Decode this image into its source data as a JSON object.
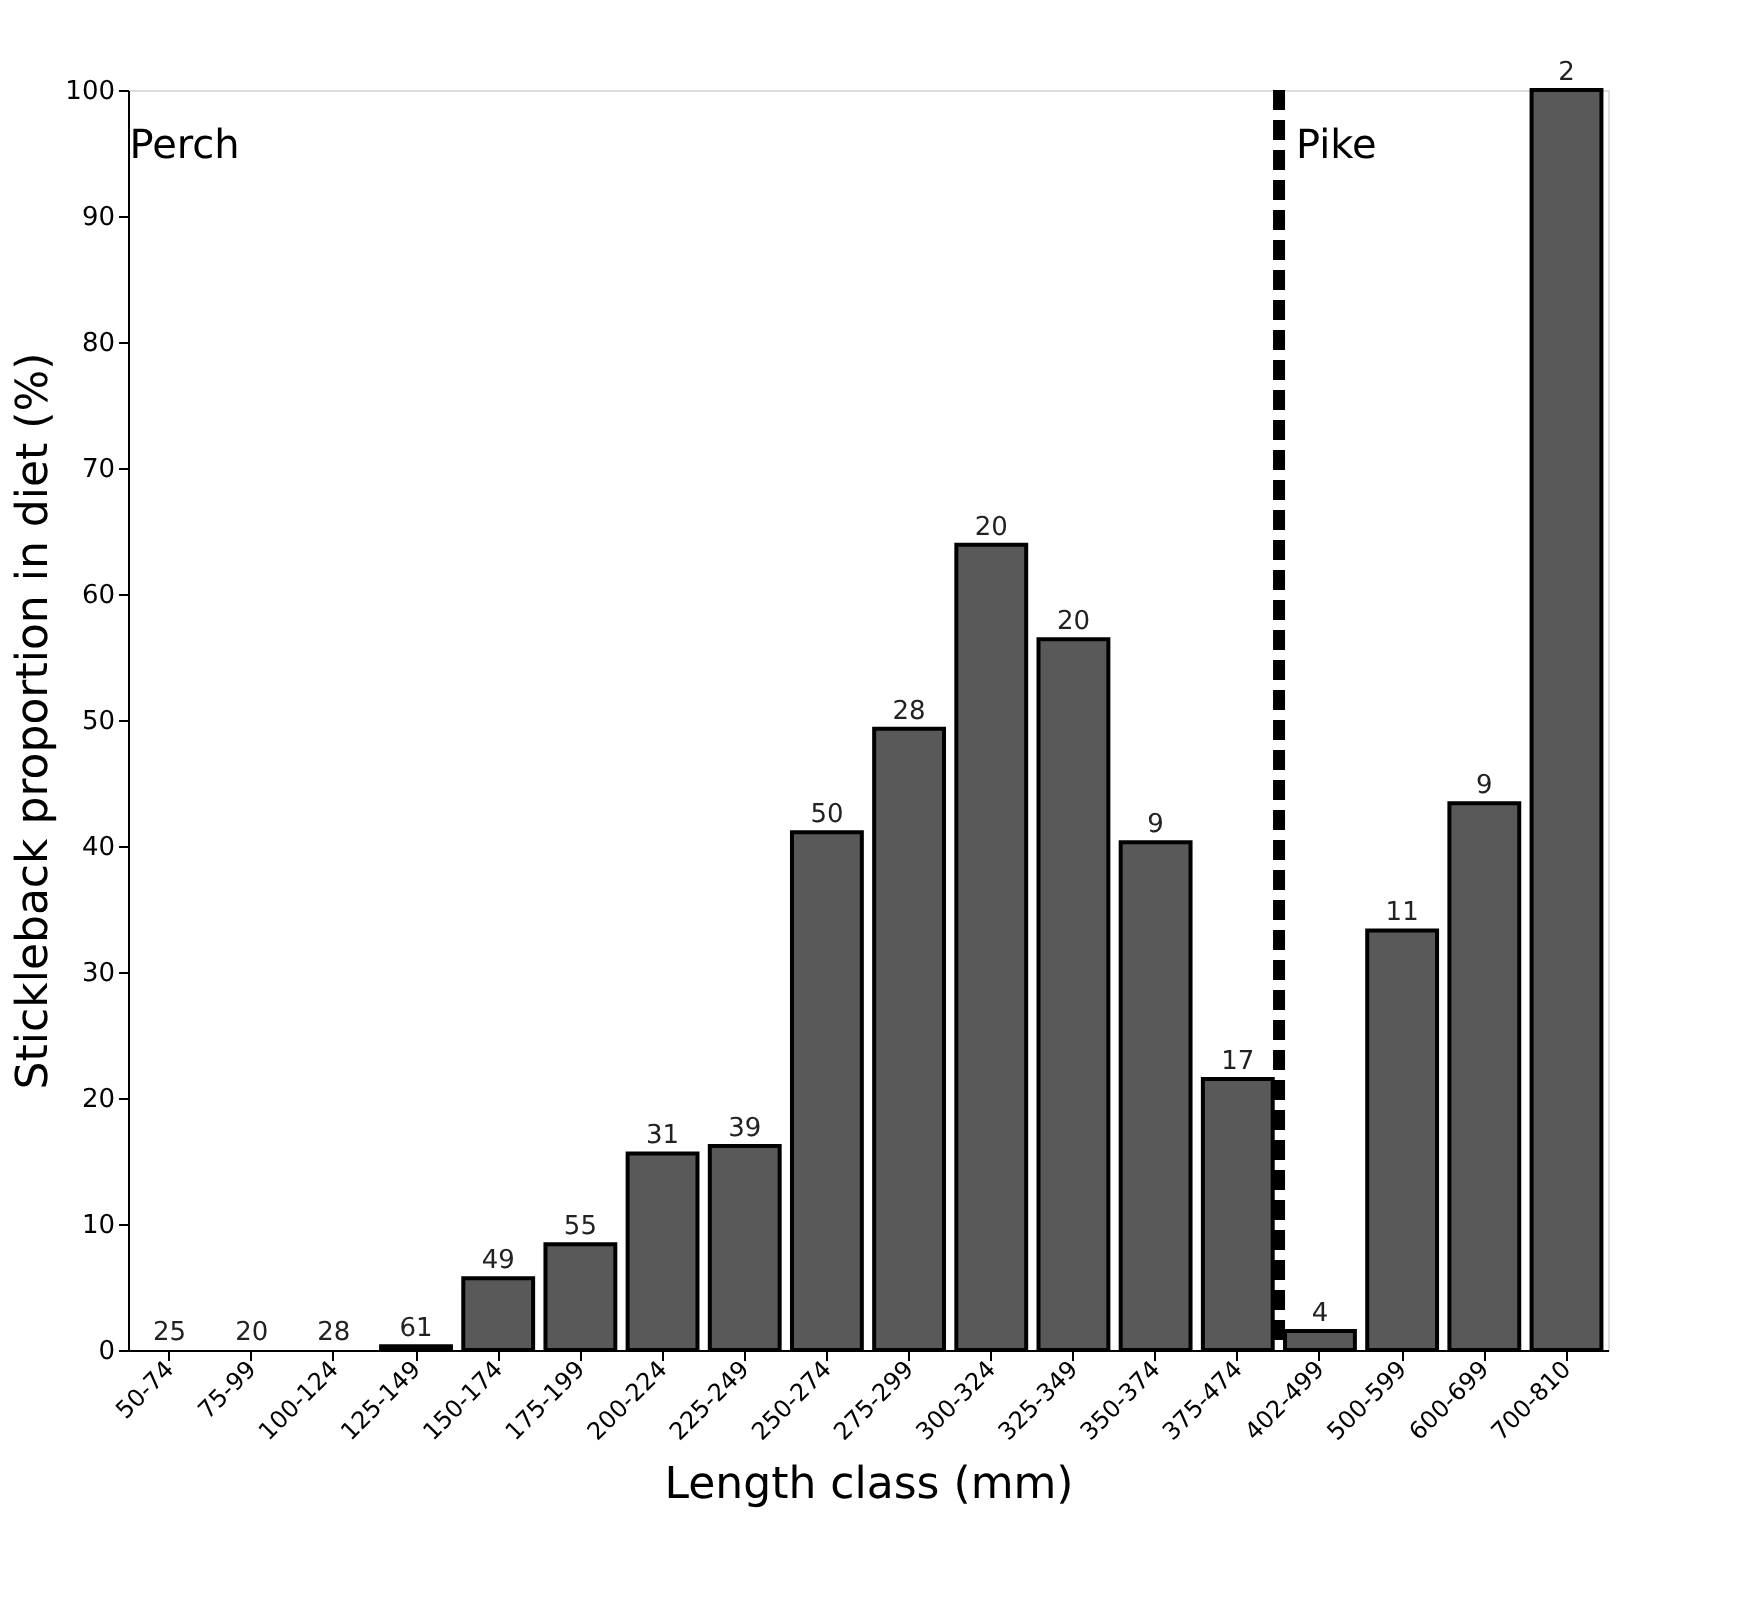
{
  "chart_data": {
    "type": "bar",
    "xlabel": "Length class (mm)",
    "ylabel": "Stickleback proportion in diet (%)",
    "categories": [
      "50-74",
      "75-99",
      "100-124",
      "125-149",
      "150-174",
      "175-199",
      "200-224",
      "225-249",
      "250-274",
      "275-299",
      "300-324",
      "325-349",
      "350-374",
      "375-474",
      "402-499",
      "500-599",
      "600-699",
      "700-810"
    ],
    "values": [
      0,
      0,
      0,
      0.3,
      5.7,
      8.4,
      15.6,
      16.2,
      41.1,
      49.3,
      63.9,
      56.4,
      40.3,
      21.5,
      1.5,
      33.3,
      43.4,
      100
    ],
    "color": "#595959",
    "ylim": [
      0,
      100
    ],
    "yticks": [
      0,
      10,
      20,
      30,
      40,
      50,
      60,
      70,
      80,
      90,
      100
    ],
    "grid": false,
    "ref_lines": [
      {
        "axis": "x",
        "value": "402-499",
        "color": "#000000",
        "line_style": "dashed"
      }
    ],
    "annotations": [
      "Perch",
      "Pike",
      {
        "text": "25",
        "x": "50-74",
        "y": 0
      },
      {
        "text": "20",
        "x": "75-99",
        "y": 0
      },
      {
        "text": "28",
        "x": "100-124",
        "y": 0
      },
      {
        "text": "61",
        "x": "125-149",
        "y": 0.3
      },
      {
        "text": "49",
        "x": "150-174",
        "y": 5.7
      },
      {
        "text": "55",
        "x": "175-199",
        "y": 8.4
      },
      {
        "text": "31",
        "x": "200-224",
        "y": 15.6
      },
      {
        "text": "39",
        "x": "225-249",
        "y": 16.2
      },
      {
        "text": "50",
        "x": "250-274",
        "y": 41.1
      },
      {
        "text": "28",
        "x": "275-299",
        "y": 49.3
      },
      {
        "text": "20",
        "x": "300-324",
        "y": 63.9
      },
      {
        "text": "20",
        "x": "325-349",
        "y": 56.4
      },
      {
        "text": "9",
        "x": "350-374",
        "y": 40.3
      },
      {
        "text": "17",
        "x": "375-474",
        "y": 21.5
      },
      {
        "text": "4",
        "x": "402-499",
        "y": 1.5
      },
      {
        "text": "11",
        "x": "500-599",
        "y": 33.3
      },
      {
        "text": "9",
        "x": "600-699",
        "y": 43.4
      },
      {
        "text": "2",
        "x": "700-810",
        "y": 100
      }
    ]
  }
}
